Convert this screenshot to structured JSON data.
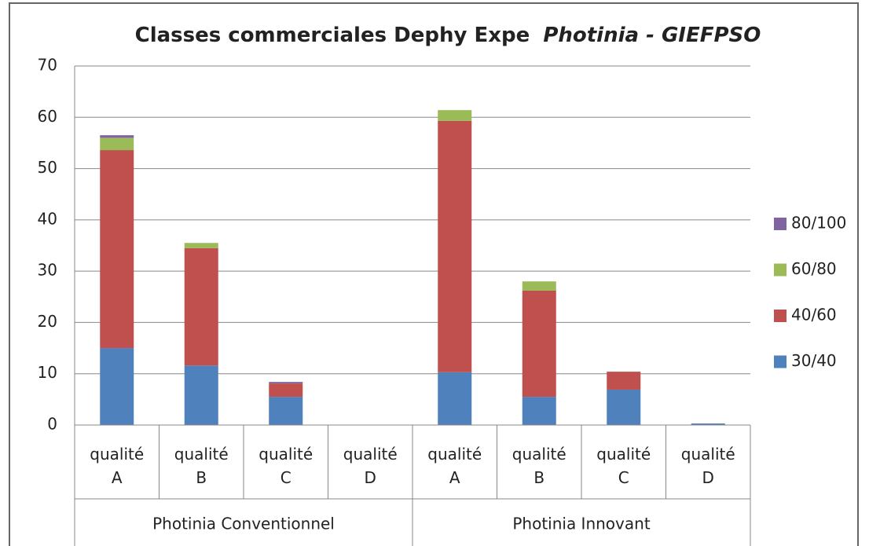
{
  "chart_data": {
    "type": "stacked_bar",
    "title": "Classes commerciales  Dephy Expe",
    "title_italic": "Photinia - GIEFPSO",
    "categories": [
      "qualité A",
      "qualité B",
      "qualité C",
      "qualité D",
      "qualité A",
      "qualité B",
      "qualité C",
      "qualité D"
    ],
    "groups": [
      {
        "name": "Photinia Conventionnel",
        "size": 4
      },
      {
        "name": "Photinia Innovant",
        "size": 4
      }
    ],
    "series": [
      {
        "name": "30/40",
        "color": "#4f81bd",
        "values": [
          15,
          11.6,
          5.5,
          0,
          10.3,
          5.5,
          6.9,
          0.3
        ]
      },
      {
        "name": "40/60",
        "color": "#c0504d",
        "values": [
          38.6,
          22.9,
          2.6,
          0,
          49,
          20.7,
          3.5,
          0
        ]
      },
      {
        "name": "60/80",
        "color": "#9bbb59",
        "values": [
          2.4,
          1.0,
          0,
          0,
          2.1,
          1.8,
          0,
          0
        ]
      },
      {
        "name": "80/100",
        "color": "#8064a2",
        "values": [
          0.5,
          0,
          0.3,
          0,
          0,
          0,
          0,
          0
        ]
      }
    ],
    "ylim": [
      0,
      70
    ],
    "yticks": [
      0,
      10,
      20,
      30,
      40,
      50,
      60,
      70
    ],
    "grid": true,
    "legend": "right"
  }
}
